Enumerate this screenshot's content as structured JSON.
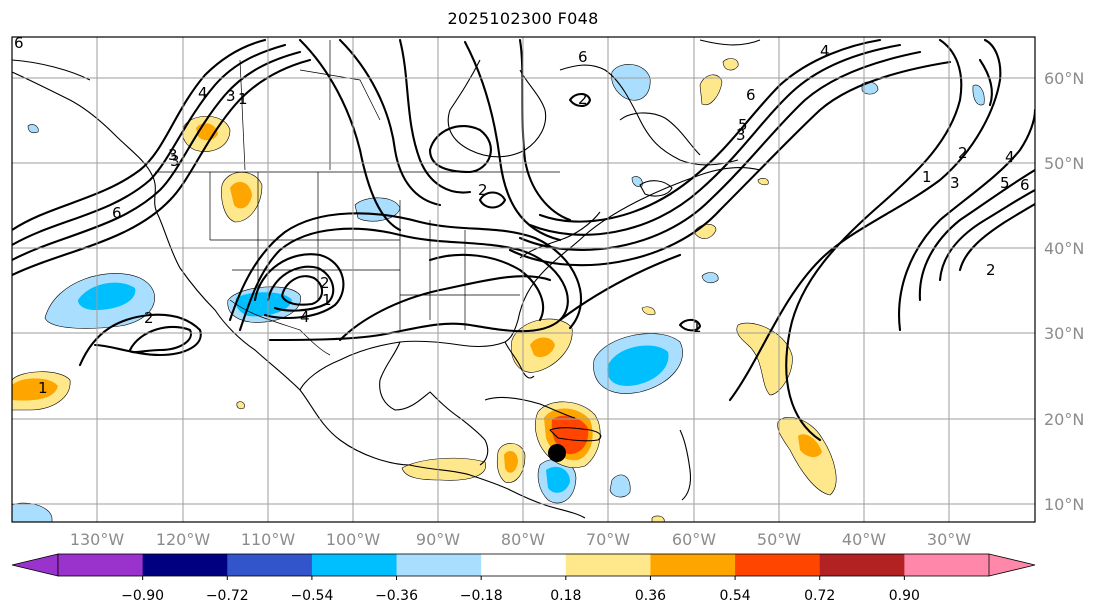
{
  "title": "2025102300 F048",
  "latitudes": [
    "60°N",
    "50°N",
    "40°N",
    "30°N",
    "20°N",
    "10°N"
  ],
  "longitudes": [
    "130°W",
    "120°W",
    "110°W",
    "100°W",
    "90°W",
    "80°W",
    "70°W",
    "60°W",
    "50°W",
    "40°W",
    "30°W"
  ],
  "colorbar": {
    "colors": [
      "#9933cc",
      "#000080",
      "#3355cc",
      "#00bfff",
      "#aadeff",
      "#ffffff",
      "#ffe88c",
      "#ffa500",
      "#ff4500",
      "#b22222",
      "#ff88aa"
    ],
    "under_color": "#9933cc",
    "over_color": "#ff88aa",
    "ticks": [
      "−0.90",
      "−0.72",
      "−0.54",
      "−0.36",
      "−0.18",
      "0.18",
      "0.36",
      "0.54",
      "0.72",
      "0.90"
    ]
  },
  "contour_labels": [
    "2",
    "1",
    "3",
    "4",
    "6",
    "2",
    "1",
    "2",
    "3",
    "4",
    "5",
    "6",
    "6",
    "5",
    "4",
    "3",
    "2",
    "1",
    "4",
    "1",
    "2",
    "3",
    "2",
    "1",
    "3",
    "6",
    "6"
  ],
  "marker": "storm-position-dot"
}
